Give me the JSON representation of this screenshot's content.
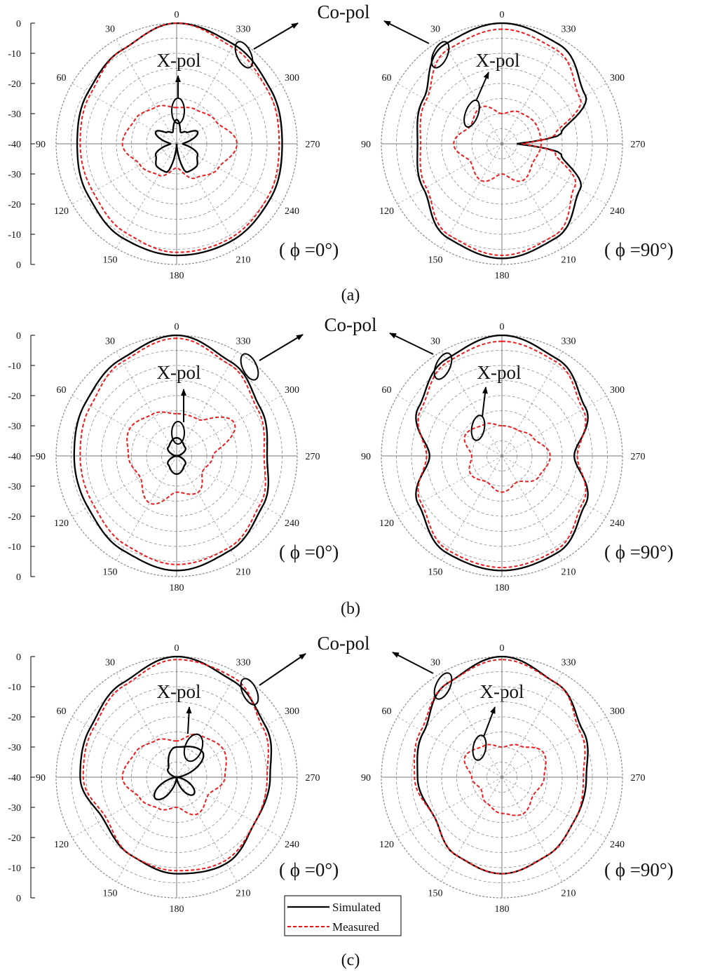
{
  "figure": {
    "ring_labels": [
      "0",
      "-10",
      "-20",
      "-30",
      "-40",
      "-30",
      "-20",
      "-10",
      "0"
    ],
    "angle_labels": [
      "0",
      "30",
      "60",
      "90",
      "120",
      "150",
      "180",
      "210",
      "240",
      "270",
      "300",
      "330"
    ],
    "legend": {
      "simulated": "Simulated",
      "measured": "Measured"
    },
    "colors": {
      "simulated": "#000000",
      "measured": "#ee1c1c",
      "grid": "#8a8a8a"
    },
    "annotation_copol": "Co-pol",
    "annotation_xpol": "X-pol",
    "phi0_label": "( ϕ =0°)",
    "phi90_label": "( ϕ =90°)"
  },
  "chart_data": [
    {
      "type": "polar",
      "panel": "(a)",
      "caption": "(a)",
      "plane": "phi=0",
      "r_range_db": [
        -40,
        0
      ],
      "angle_labels_deg": [
        0,
        30,
        60,
        90,
        120,
        150,
        180,
        210,
        240,
        270,
        300,
        330
      ],
      "series": [
        {
          "name": "Simulated",
          "pol": "Co-pol",
          "angles": [
            0,
            30,
            60,
            90,
            120,
            150,
            180,
            210,
            240,
            270,
            300,
            330
          ],
          "values_db": [
            0,
            -4,
            -6,
            -7,
            -6,
            -4,
            -3,
            -3,
            -4,
            -5,
            -4,
            -2
          ]
        },
        {
          "name": "Measured",
          "pol": "Co-pol",
          "angles": [
            0,
            30,
            60,
            90,
            120,
            150,
            180,
            210,
            240,
            270,
            300,
            330
          ],
          "values_db": [
            0,
            -4,
            -7,
            -8,
            -8,
            -6,
            -4,
            -4,
            -5,
            -6,
            -5,
            -3
          ]
        },
        {
          "name": "Simulated",
          "pol": "X-pol",
          "angles": [
            0,
            20,
            40,
            60,
            90,
            120,
            140,
            160,
            180,
            200,
            220,
            240,
            270,
            300,
            320,
            340
          ],
          "values_db": [
            -32,
            -36,
            -35,
            -32,
            -38,
            -32,
            -30,
            -30,
            -40,
            -30,
            -30,
            -32,
            -38,
            -32,
            -35,
            -36
          ]
        },
        {
          "name": "Measured",
          "pol": "X-pol",
          "angles": [
            0,
            30,
            60,
            90,
            120,
            150,
            180,
            210,
            240,
            270,
            300,
            330
          ],
          "values_db": [
            -28,
            -26,
            -24,
            -22,
            -26,
            -28,
            -32,
            -27,
            -24,
            -20,
            -25,
            -27
          ]
        }
      ]
    },
    {
      "type": "polar",
      "panel": "(a)",
      "caption": "(a)",
      "plane": "phi=90",
      "r_range_db": [
        -40,
        0
      ],
      "angle_labels_deg": [
        0,
        30,
        60,
        90,
        120,
        150,
        180,
        210,
        240,
        270,
        300,
        330
      ],
      "series": [
        {
          "name": "Simulated",
          "pol": "Co-pol",
          "angles": [
            0,
            30,
            60,
            90,
            120,
            150,
            180,
            210,
            240,
            260,
            270,
            280,
            300,
            330
          ],
          "values_db": [
            0,
            -2,
            -10,
            -12,
            -10,
            -4,
            -2,
            -4,
            -10,
            -20,
            -35,
            -20,
            -8,
            -2
          ]
        },
        {
          "name": "Measured",
          "pol": "Co-pol",
          "angles": [
            0,
            30,
            60,
            90,
            120,
            150,
            180,
            210,
            240,
            260,
            270,
            280,
            300,
            330
          ],
          "values_db": [
            -2,
            -4,
            -11,
            -13,
            -11,
            -5,
            -3,
            -5,
            -12,
            -22,
            -33,
            -22,
            -10,
            -4
          ]
        },
        {
          "name": "Measured",
          "pol": "X-pol",
          "angles": [
            0,
            30,
            60,
            90,
            120,
            150,
            180,
            210,
            240,
            270,
            300,
            330
          ],
          "values_db": [
            -30,
            -26,
            -28,
            -24,
            -28,
            -26,
            -30,
            -26,
            -28,
            -27,
            -27,
            -28
          ]
        }
      ]
    },
    {
      "type": "polar",
      "panel": "(b)",
      "caption": "(b)",
      "plane": "phi=0",
      "r_range_db": [
        -40,
        0
      ],
      "angle_labels_deg": [
        0,
        30,
        60,
        90,
        120,
        150,
        180,
        210,
        240,
        270,
        300,
        330
      ],
      "series": [
        {
          "name": "Simulated",
          "pol": "Co-pol",
          "angles": [
            0,
            30,
            60,
            90,
            120,
            150,
            180,
            210,
            240,
            270,
            300,
            330
          ],
          "values_db": [
            0,
            -3,
            -5,
            -6,
            -6,
            -4,
            -2,
            -4,
            -7,
            -10,
            -8,
            -4
          ]
        },
        {
          "name": "Measured",
          "pol": "Co-pol",
          "angles": [
            0,
            30,
            60,
            90,
            120,
            150,
            180,
            210,
            240,
            270,
            300,
            330
          ],
          "values_db": [
            -1,
            -4,
            -7,
            -8,
            -8,
            -6,
            -4,
            -5,
            -8,
            -11,
            -9,
            -5
          ]
        },
        {
          "name": "Simulated",
          "pol": "X-pol",
          "angles": [
            0,
            45,
            90,
            135,
            180,
            225,
            270,
            315
          ],
          "values_db": [
            -34,
            -36,
            -40,
            -36,
            -34,
            -36,
            -40,
            -36
          ]
        },
        {
          "name": "Measured",
          "pol": "X-pol",
          "angles": [
            0,
            30,
            60,
            90,
            120,
            150,
            180,
            210,
            240,
            270,
            300,
            330
          ],
          "values_db": [
            -26,
            -24,
            -22,
            -24,
            -26,
            -22,
            -28,
            -26,
            -30,
            -28,
            -18,
            -26
          ]
        }
      ]
    },
    {
      "type": "polar",
      "panel": "(b)",
      "caption": "(b)",
      "plane": "phi=90",
      "r_range_db": [
        -40,
        0
      ],
      "angle_labels_deg": [
        0,
        30,
        60,
        90,
        120,
        150,
        180,
        210,
        240,
        270,
        300,
        330
      ],
      "series": [
        {
          "name": "Simulated",
          "pol": "Co-pol",
          "angles": [
            0,
            30,
            60,
            90,
            120,
            150,
            180,
            210,
            240,
            270,
            300,
            330
          ],
          "values_db": [
            0,
            -3,
            -8,
            -16,
            -8,
            -3,
            -2,
            -3,
            -8,
            -16,
            -8,
            -3
          ]
        },
        {
          "name": "Measured",
          "pol": "Co-pol",
          "angles": [
            0,
            30,
            60,
            90,
            120,
            150,
            180,
            210,
            240,
            270,
            300,
            330
          ],
          "values_db": [
            -2,
            -4,
            -9,
            -15,
            -9,
            -4,
            -3,
            -4,
            -9,
            -15,
            -9,
            -4
          ]
        },
        {
          "name": "Measured",
          "pol": "X-pol",
          "angles": [
            0,
            30,
            60,
            90,
            120,
            150,
            180,
            210,
            240,
            270,
            300,
            330
          ],
          "values_db": [
            -30,
            -28,
            -26,
            -30,
            -28,
            -30,
            -28,
            -30,
            -26,
            -24,
            -28,
            -30
          ]
        }
      ]
    },
    {
      "type": "polar",
      "panel": "(c)",
      "caption": "(c)",
      "plane": "phi=0",
      "r_range_db": [
        -40,
        0
      ],
      "angle_labels_deg": [
        0,
        30,
        60,
        90,
        120,
        150,
        180,
        210,
        240,
        270,
        300,
        330
      ],
      "series": [
        {
          "name": "Simulated",
          "pol": "Co-pol",
          "angles": [
            0,
            30,
            60,
            90,
            120,
            150,
            180,
            210,
            240,
            270,
            300,
            330
          ],
          "values_db": [
            0,
            -4,
            -7,
            -8,
            -12,
            -10,
            -8,
            -7,
            -10,
            -9,
            -6,
            -3
          ]
        },
        {
          "name": "Measured",
          "pol": "Co-pol",
          "angles": [
            0,
            30,
            60,
            90,
            120,
            150,
            180,
            210,
            240,
            270,
            300,
            330
          ],
          "values_db": [
            -1,
            -5,
            -8,
            -9,
            -13,
            -10,
            -9,
            -8,
            -10,
            -10,
            -7,
            -2
          ]
        },
        {
          "name": "Simulated",
          "pol": "X-pol",
          "angles": [
            0,
            45,
            90,
            135,
            180,
            225,
            270,
            315
          ],
          "values_db": [
            -30,
            -36,
            -40,
            -30,
            -40,
            -32,
            -40,
            -28
          ]
        },
        {
          "name": "Measured",
          "pol": "X-pol",
          "angles": [
            0,
            30,
            60,
            90,
            120,
            150,
            180,
            210,
            240,
            270,
            300,
            330
          ],
          "values_db": [
            -28,
            -26,
            -24,
            -22,
            -26,
            -28,
            -30,
            -26,
            -28,
            -24,
            -22,
            -24
          ]
        }
      ]
    },
    {
      "type": "polar",
      "panel": "(c)",
      "caption": "(c)",
      "plane": "phi=90",
      "r_range_db": [
        -40,
        0
      ],
      "angle_labels_deg": [
        0,
        30,
        60,
        90,
        120,
        150,
        180,
        210,
        240,
        270,
        300,
        330
      ],
      "series": [
        {
          "name": "Simulated",
          "pol": "Co-pol",
          "angles": [
            0,
            30,
            60,
            90,
            120,
            150,
            180,
            210,
            240,
            270,
            300,
            330
          ],
          "values_db": [
            0,
            -4,
            -10,
            -12,
            -14,
            -10,
            -8,
            -10,
            -12,
            -12,
            -9,
            -4
          ]
        },
        {
          "name": "Measured",
          "pol": "Co-pol",
          "angles": [
            0,
            30,
            60,
            90,
            120,
            150,
            180,
            210,
            240,
            270,
            300,
            330
          ],
          "values_db": [
            -1,
            -4,
            -9,
            -11,
            -14,
            -10,
            -8,
            -10,
            -12,
            -13,
            -10,
            -4
          ]
        },
        {
          "name": "Measured",
          "pol": "X-pol",
          "angles": [
            0,
            30,
            60,
            90,
            120,
            150,
            180,
            210,
            240,
            270,
            300,
            330
          ],
          "values_db": [
            -30,
            -28,
            -26,
            -30,
            -32,
            -30,
            -28,
            -26,
            -28,
            -26,
            -24,
            -28
          ]
        }
      ]
    }
  ]
}
